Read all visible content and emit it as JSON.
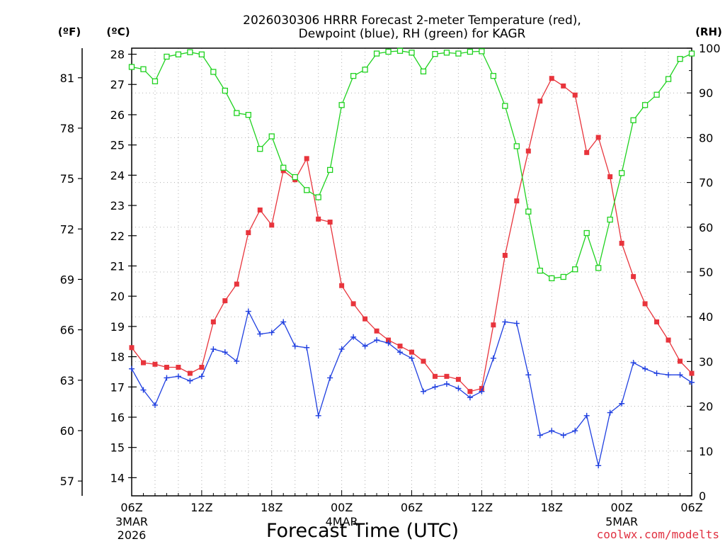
{
  "chart_data": {
    "type": "line",
    "title_line1": "2026030306 HRRR Forecast 2-meter Temperature (red),",
    "title_line2": "Dewpoint (blue), RH (green) for KAGR",
    "xlabel": "Forecast Time (UTC)",
    "credit": "coolwx.com/modelts",
    "units": {
      "fahrenheit": "(ºF)",
      "celsius": "(ºC)",
      "rh": "(RH)"
    },
    "celsius_axis": {
      "range": [
        13.4,
        28.2
      ],
      "ticks": [
        "14",
        "15",
        "16",
        "17",
        "18",
        "19",
        "20",
        "21",
        "22",
        "23",
        "24",
        "25",
        "26",
        "27",
        "28"
      ]
    },
    "fahrenheit_ticks": [
      "57",
      "60",
      "63",
      "66",
      "69",
      "72",
      "75",
      "78",
      "81"
    ],
    "rh_axis": {
      "range": [
        0,
        100
      ],
      "ticks": [
        "0",
        "10",
        "20",
        "30",
        "40",
        "50",
        "60",
        "70",
        "80",
        "90",
        "100"
      ]
    },
    "x_range": [
      0,
      48
    ],
    "x_ticks": [
      {
        "hour": 0,
        "label": "06Z",
        "date": "3MAR",
        "year": "2026"
      },
      {
        "hour": 6,
        "label": "12Z"
      },
      {
        "hour": 12,
        "label": "18Z"
      },
      {
        "hour": 18,
        "label": "00Z",
        "date": "4MAR"
      },
      {
        "hour": 24,
        "label": "06Z"
      },
      {
        "hour": 30,
        "label": "12Z"
      },
      {
        "hour": 36,
        "label": "18Z"
      },
      {
        "hour": 42,
        "label": "00Z",
        "date": "5MAR"
      },
      {
        "hour": 48,
        "label": "06Z"
      }
    ],
    "series": [
      {
        "name": "Temperature",
        "unit": "C",
        "color": "#e8343c",
        "marker": "filled-square",
        "values": [
          18.3,
          17.8,
          17.75,
          17.65,
          17.65,
          17.45,
          17.65,
          19.15,
          19.85,
          20.4,
          22.1,
          22.85,
          22.35,
          24.15,
          23.85,
          24.55,
          22.55,
          22.45,
          20.35,
          19.75,
          19.25,
          18.85,
          18.55,
          18.35,
          18.15,
          17.85,
          17.35,
          17.35,
          17.25,
          16.85,
          16.95,
          19.05,
          21.35,
          23.15,
          24.8,
          26.45,
          27.2,
          26.95,
          26.65,
          24.75,
          25.25,
          23.95,
          21.75,
          20.65,
          19.75,
          19.15,
          18.55,
          17.85,
          17.45
        ]
      },
      {
        "name": "Dewpoint",
        "unit": "C",
        "color": "#1f3fe0",
        "marker": "plus",
        "values": [
          17.6,
          16.9,
          16.4,
          17.3,
          17.35,
          17.2,
          17.35,
          18.25,
          18.15,
          17.85,
          19.5,
          18.75,
          18.8,
          19.15,
          18.35,
          18.3,
          16.05,
          17.3,
          18.25,
          18.65,
          18.35,
          18.55,
          18.45,
          18.15,
          17.95,
          16.85,
          17.0,
          17.1,
          16.95,
          16.65,
          16.85,
          17.95,
          19.15,
          19.1,
          17.4,
          15.4,
          15.55,
          15.4,
          15.55,
          16.05,
          14.4,
          16.15,
          16.45,
          17.8,
          17.6,
          17.45,
          17.4,
          17.4,
          17.15
        ]
      },
      {
        "name": "RH",
        "unit": "%",
        "color": "#1fd21f",
        "marker": "open-square",
        "values": [
          95.8,
          95.3,
          92.6,
          98.1,
          98.6,
          99.1,
          98.6,
          94.7,
          90.5,
          85.5,
          85.1,
          77.5,
          80.3,
          73.3,
          71.2,
          68.3,
          66.7,
          72.8,
          87.3,
          93.8,
          95.2,
          98.8,
          99.2,
          99.4,
          99.0,
          94.8,
          98.7,
          99.0,
          98.8,
          99.2,
          99.3,
          93.8,
          87.1,
          78.1,
          63.5,
          50.3,
          48.6,
          48.9,
          50.6,
          58.7,
          50.9,
          61.7,
          72.1,
          83.9,
          87.3,
          89.6,
          93.1,
          97.6,
          98.8
        ]
      }
    ]
  }
}
